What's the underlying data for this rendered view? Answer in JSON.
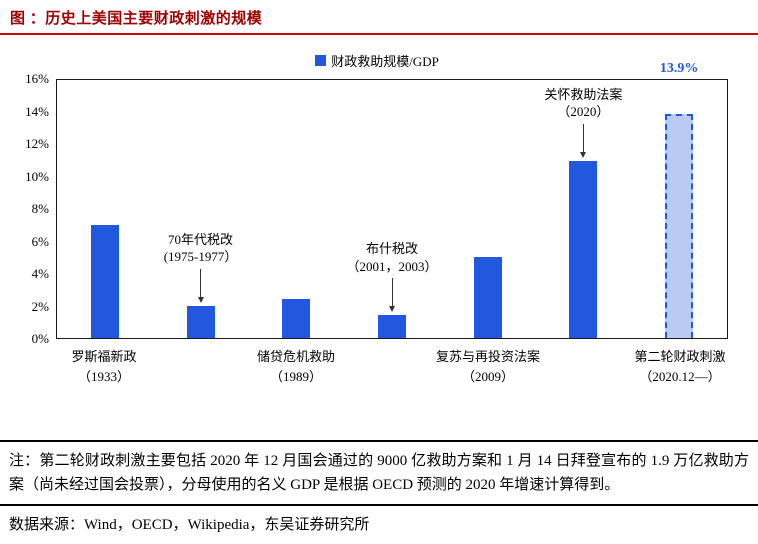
{
  "header": {
    "title": "图 ：历史上美国主要财政刺激的规模"
  },
  "chart_data": {
    "type": "bar",
    "legend": "财政救助规模/GDP",
    "ylim": [
      0,
      16
    ],
    "ytick_step": 2,
    "ytick_labels": [
      "0%",
      "2%",
      "4%",
      "6%",
      "8%",
      "10%",
      "12%",
      "14%",
      "16%"
    ],
    "grid": false,
    "legend_position": "top-center",
    "bars": [
      {
        "name": "罗斯福新政（1933）",
        "value": 7,
        "style": "solid"
      },
      {
        "name": "70年代税改（1975-1977）",
        "value": 2,
        "style": "solid"
      },
      {
        "name": "储贷危机救助（1989）",
        "value": 2.4,
        "style": "solid"
      },
      {
        "name": "布什税改（2001，2003）",
        "value": 1.4,
        "style": "solid"
      },
      {
        "name": "复苏与再投资法案（2009）",
        "value": 5,
        "style": "solid"
      },
      {
        "name": "关怀救助法案（2020）",
        "value": 11,
        "style": "solid"
      },
      {
        "name": "第二轮财政刺激（2020.12—）",
        "value": 13.9,
        "style": "dashed"
      }
    ],
    "x_axis_labels": [
      {
        "line1": "罗斯福新政",
        "line2": "（1933）",
        "under_bar": 0
      },
      {
        "line1": "储贷危机救助",
        "line2": "（1989）",
        "under_bar": 2
      },
      {
        "line1": "复苏与再投资法案",
        "line2": "（2009）",
        "under_bar": 4
      },
      {
        "line1": "第二轮财政刺激",
        "line2": "（2020.12—）",
        "under_bar": 6
      }
    ],
    "annotations": [
      {
        "text_line1": "70年代税改",
        "text_line2": "(1975-1977）",
        "bar": 1
      },
      {
        "text_line1": "布什税改",
        "text_line2": "（2001，2003）",
        "bar": 3
      },
      {
        "text_line1": "关怀救助法案",
        "text_line2": "（2020）",
        "bar": 5
      }
    ],
    "value_label": {
      "text": "13.9%",
      "bar": 6
    },
    "colors": {
      "bar": "#2257e0",
      "dashed_fill": "#b9cbf2",
      "value_label": "#2257e0",
      "title": "#9c0000",
      "accent_red": "#cc0000"
    }
  },
  "footer": {
    "note": "注：第二轮财政刺激主要包括 2020 年 12 月国会通过的 9000 亿救助方案和 1 月 14 日拜登宣布的 1.9 万亿救助方案（尚未经过国会投票），分母使用的名义 GDP 是根据 OECD 预测的 2020 年增速计算得到。",
    "source": "数据来源：Wind，OECD，Wikipedia，东吴证券研究所"
  }
}
